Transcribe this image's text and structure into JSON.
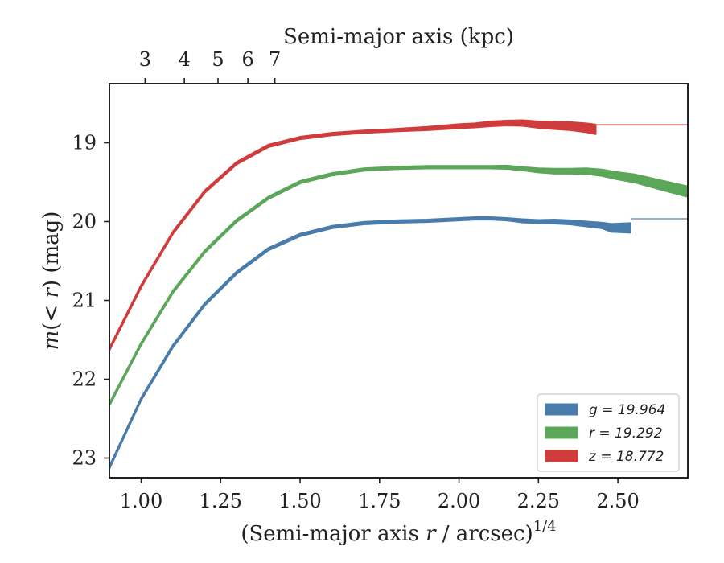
{
  "chart_data": {
    "type": "area",
    "xlabel": "(Semi-major axis r / arcsec)^1/4",
    "x2label": "Semi-major axis (kpc)",
    "ylabel": "m(< r) (mag)",
    "xlim": [
      0.9,
      2.72
    ],
    "ylim": [
      23.25,
      18.25
    ],
    "y_inverted": true,
    "xticks": [
      1.0,
      1.25,
      1.5,
      1.75,
      2.0,
      2.25,
      2.5
    ],
    "xtick_labels": [
      "1.00",
      "1.25",
      "1.50",
      "1.75",
      "2.00",
      "2.25",
      "2.50"
    ],
    "yticks": [
      19,
      20,
      21,
      22,
      23
    ],
    "ytick_labels": [
      "19",
      "20",
      "21",
      "22",
      "23"
    ],
    "x2ticks_kpc": [
      3,
      4,
      5,
      6,
      7
    ],
    "x2tick_labels": [
      "3",
      "4",
      "5",
      "6",
      "7"
    ],
    "legend_position": "lower-right",
    "series": [
      {
        "name": "g = 19.964",
        "band": "g",
        "total_mag": 19.964,
        "color": "#4a7cab",
        "x": [
          0.9,
          1.0,
          1.1,
          1.2,
          1.3,
          1.4,
          1.5,
          1.6,
          1.7,
          1.8,
          1.9,
          2.0,
          2.05,
          2.1,
          2.15,
          2.2,
          2.25,
          2.3,
          2.35,
          2.4,
          2.45,
          2.48,
          2.54
        ],
        "y": [
          23.12,
          22.25,
          21.58,
          21.05,
          20.65,
          20.35,
          20.17,
          20.07,
          20.02,
          20.0,
          19.99,
          19.97,
          19.96,
          19.96,
          19.97,
          19.99,
          20.0,
          20.0,
          20.01,
          20.03,
          20.05,
          20.08,
          20.08
        ],
        "width_mag": [
          0.03,
          0.03,
          0.03,
          0.03,
          0.03,
          0.03,
          0.03,
          0.03,
          0.03,
          0.03,
          0.03,
          0.03,
          0.03,
          0.03,
          0.03,
          0.04,
          0.04,
          0.05,
          0.05,
          0.06,
          0.07,
          0.1,
          0.12
        ]
      },
      {
        "name": "r = 19.292",
        "band": "r",
        "total_mag": 19.292,
        "color": "#5ca65a",
        "x": [
          0.9,
          1.0,
          1.1,
          1.2,
          1.3,
          1.4,
          1.5,
          1.6,
          1.7,
          1.8,
          1.9,
          2.0,
          2.1,
          2.15,
          2.2,
          2.25,
          2.3,
          2.35,
          2.4,
          2.45,
          2.5,
          2.55,
          2.6,
          2.65,
          2.72
        ],
        "y": [
          22.32,
          21.55,
          20.89,
          20.38,
          19.99,
          19.7,
          19.5,
          19.4,
          19.34,
          19.32,
          19.31,
          19.31,
          19.31,
          19.31,
          19.33,
          19.35,
          19.36,
          19.36,
          19.36,
          19.38,
          19.42,
          19.45,
          19.5,
          19.55,
          19.62
        ],
        "width_mag": [
          0.03,
          0.03,
          0.03,
          0.03,
          0.03,
          0.03,
          0.03,
          0.03,
          0.03,
          0.03,
          0.03,
          0.03,
          0.03,
          0.04,
          0.04,
          0.05,
          0.06,
          0.06,
          0.07,
          0.08,
          0.09,
          0.1,
          0.11,
          0.12,
          0.13
        ]
      },
      {
        "name": "z = 18.772",
        "band": "z",
        "total_mag": 18.772,
        "color": "#d03c3c",
        "x": [
          0.9,
          1.0,
          1.1,
          1.2,
          1.3,
          1.4,
          1.5,
          1.6,
          1.7,
          1.8,
          1.9,
          2.0,
          2.05,
          2.1,
          2.15,
          2.2,
          2.25,
          2.3,
          2.35,
          2.4,
          2.43
        ],
        "y": [
          21.62,
          20.82,
          20.14,
          19.62,
          19.26,
          19.04,
          18.94,
          18.89,
          18.86,
          18.84,
          18.82,
          18.79,
          18.78,
          18.76,
          18.75,
          18.75,
          18.77,
          18.78,
          18.79,
          18.81,
          18.83
        ],
        "width_mag": [
          0.03,
          0.03,
          0.03,
          0.03,
          0.03,
          0.03,
          0.03,
          0.03,
          0.03,
          0.03,
          0.04,
          0.05,
          0.05,
          0.06,
          0.06,
          0.07,
          0.08,
          0.09,
          0.1,
          0.11,
          0.12
        ]
      }
    ]
  }
}
